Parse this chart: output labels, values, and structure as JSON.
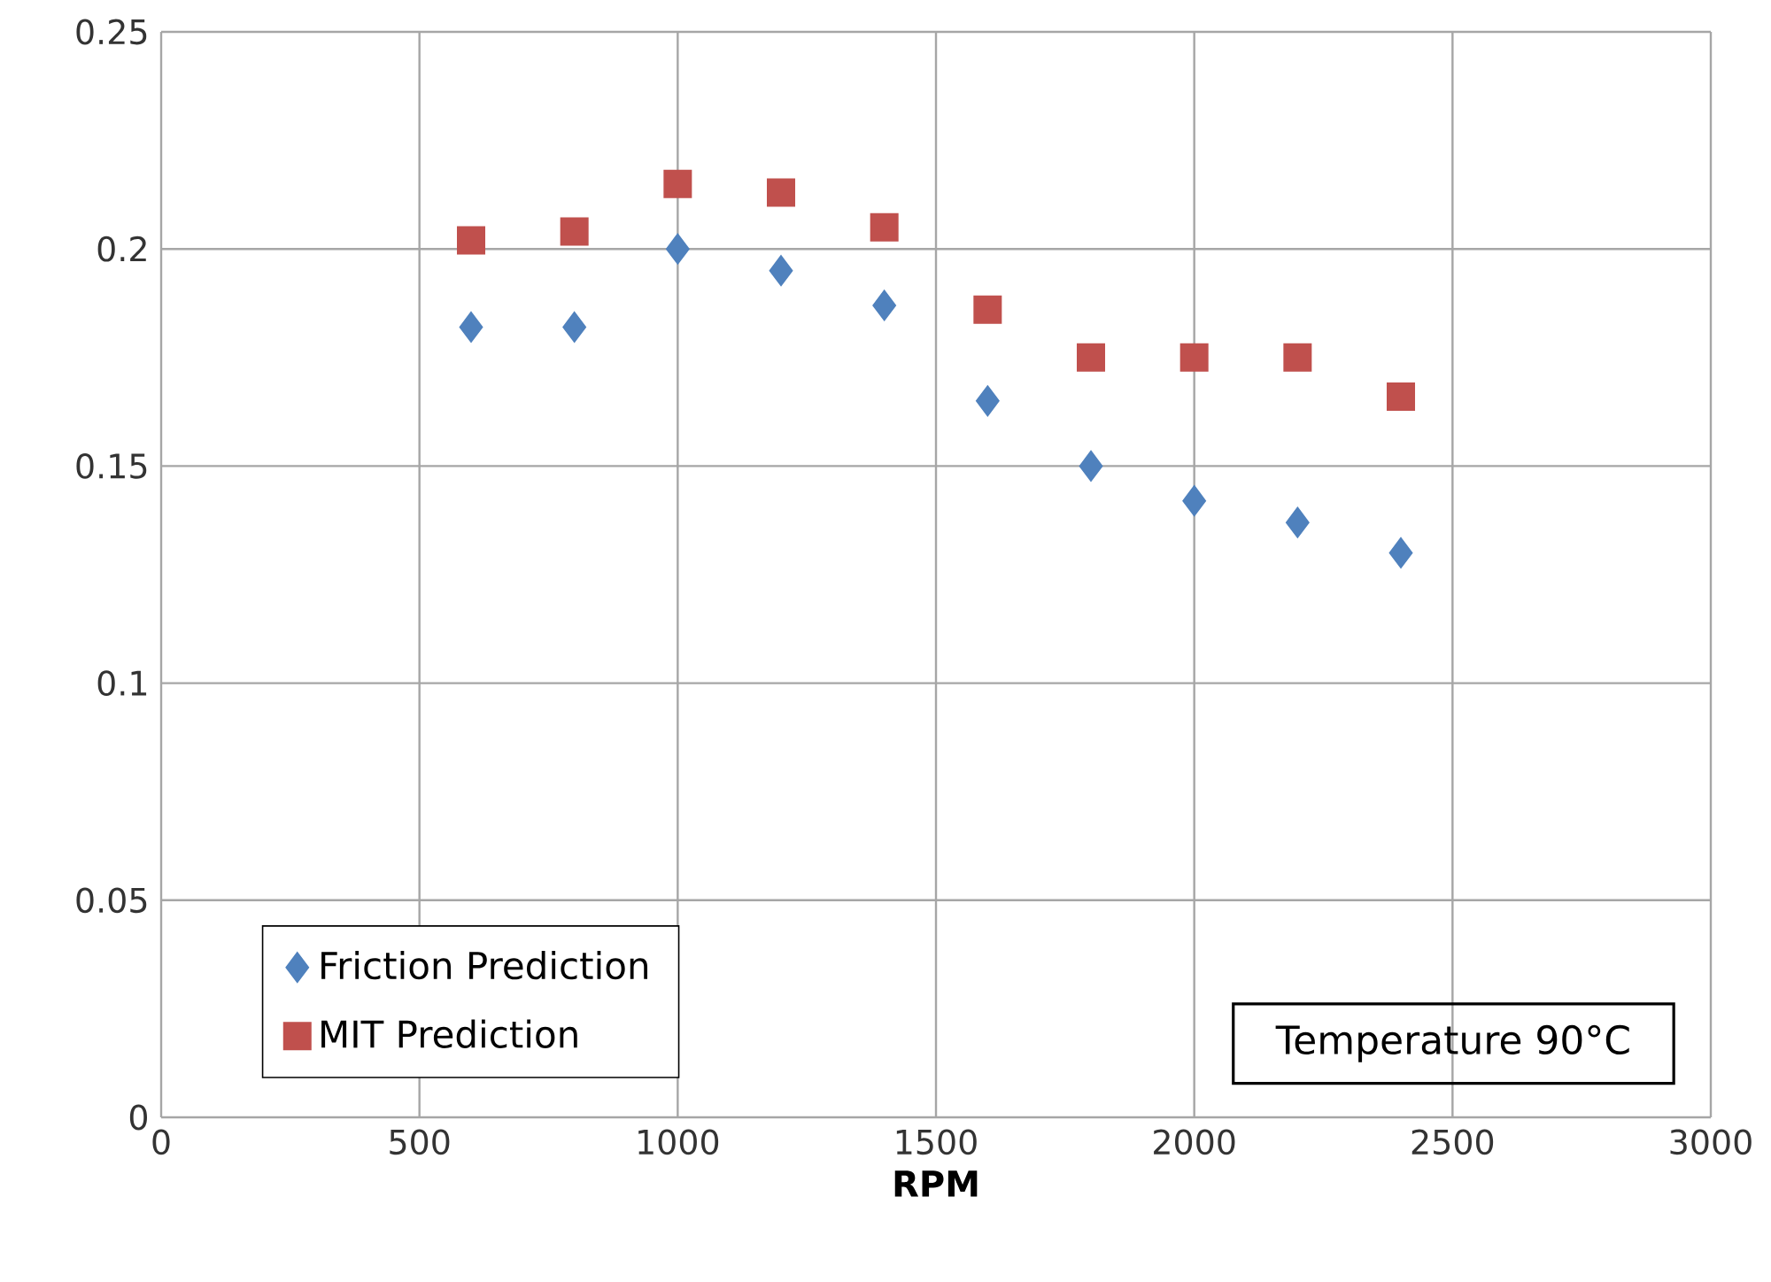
{
  "chart_data": {
    "type": "scatter",
    "xlabel": "RPM",
    "x": [
      600,
      800,
      1000,
      1200,
      1400,
      1600,
      1800,
      2000,
      2200,
      2400
    ],
    "series": [
      {
        "name": "Friction Prediction",
        "color": "#4f81bd",
        "marker": "diamond",
        "values": [
          0.182,
          0.182,
          0.2,
          0.195,
          0.187,
          0.165,
          0.15,
          0.142,
          0.137,
          0.13
        ]
      },
      {
        "name": "MIT Prediction",
        "color": "#c0504d",
        "marker": "square",
        "values": [
          0.202,
          0.204,
          0.215,
          0.213,
          0.205,
          0.186,
          0.175,
          0.175,
          0.175,
          0.166
        ]
      }
    ],
    "xlim": [
      0,
      3000
    ],
    "xticks": [
      0,
      500,
      1000,
      1500,
      2000,
      2500,
      3000
    ],
    "ylim": [
      0,
      0.25
    ],
    "yticks": [
      0,
      0.05,
      0.1,
      0.15,
      0.2,
      0.25
    ],
    "grid": true,
    "legend": "bottom left",
    "annotations": [
      "Temperature 90°C"
    ]
  }
}
